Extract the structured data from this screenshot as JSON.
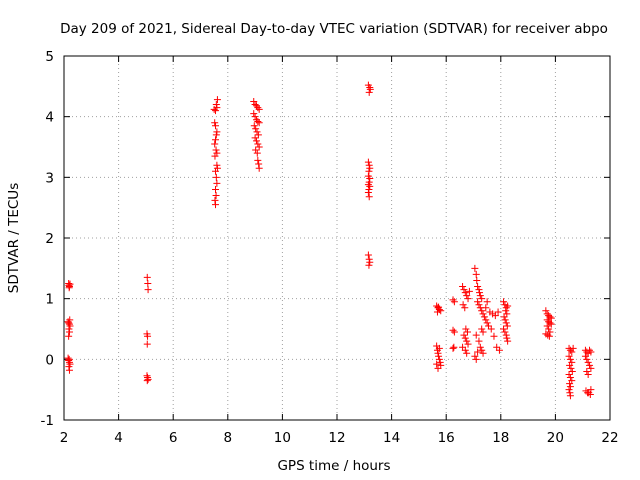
{
  "chart_data": {
    "type": "scatter",
    "title": "Day 209 of 2021, Sidereal Day-to-day VTEC variation (SDTVAR) for receiver abpo",
    "xlabel": "GPS time / hours",
    "ylabel": "SDTVAR / TECUs",
    "xlim": [
      2,
      22
    ],
    "ylim": [
      -1,
      5
    ],
    "xticks": [
      "2",
      "4",
      "6",
      "8",
      "10",
      "12",
      "14",
      "16",
      "18",
      "20",
      "22"
    ],
    "yticks": [
      "-1",
      "0",
      "1",
      "2",
      "3",
      "4",
      "5"
    ],
    "xtick_values": [
      2,
      4,
      6,
      8,
      10,
      12,
      14,
      16,
      18,
      20,
      22
    ],
    "ytick_values": [
      -1,
      0,
      1,
      2,
      3,
      4,
      5
    ],
    "grid": true,
    "marker": "+",
    "color": "#ff0000",
    "series": [
      {
        "name": "SDTVAR",
        "points": [
          [
            2.17,
            1.25
          ],
          [
            2.18,
            1.22
          ],
          [
            2.2,
            1.2
          ],
          [
            2.22,
            1.24
          ],
          [
            2.19,
            1.18
          ],
          [
            2.15,
            0.62
          ],
          [
            2.17,
            0.6
          ],
          [
            2.2,
            0.58
          ],
          [
            2.22,
            0.55
          ],
          [
            2.18,
            0.5
          ],
          [
            2.2,
            0.45
          ],
          [
            2.17,
            0.38
          ],
          [
            2.21,
            0.65
          ],
          [
            2.15,
            0.02
          ],
          [
            2.17,
            -0.02
          ],
          [
            2.2,
            -0.05
          ],
          [
            2.22,
            -0.08
          ],
          [
            2.18,
            -0.12
          ],
          [
            2.2,
            -0.18
          ],
          [
            2.19,
            0.0
          ],
          [
            5.05,
            1.35
          ],
          [
            5.07,
            1.25
          ],
          [
            5.08,
            1.15
          ],
          [
            5.04,
            0.42
          ],
          [
            5.06,
            0.38
          ],
          [
            5.05,
            0.25
          ],
          [
            5.04,
            -0.27
          ],
          [
            5.06,
            -0.3
          ],
          [
            5.08,
            -0.33
          ],
          [
            5.05,
            -0.35
          ],
          [
            7.5,
            4.12
          ],
          [
            7.55,
            4.1
          ],
          [
            7.6,
            4.15
          ],
          [
            7.62,
            4.28
          ],
          [
            7.58,
            4.2
          ],
          [
            7.52,
            3.9
          ],
          [
            7.55,
            3.85
          ],
          [
            7.6,
            3.75
          ],
          [
            7.58,
            3.7
          ],
          [
            7.55,
            3.62
          ],
          [
            7.52,
            3.55
          ],
          [
            7.57,
            3.45
          ],
          [
            7.6,
            3.4
          ],
          [
            7.53,
            3.35
          ],
          [
            7.6,
            3.2
          ],
          [
            7.62,
            3.15
          ],
          [
            7.55,
            3.1
          ],
          [
            7.58,
            3.0
          ],
          [
            7.6,
            2.9
          ],
          [
            7.55,
            2.8
          ],
          [
            7.57,
            2.7
          ],
          [
            7.53,
            2.62
          ],
          [
            7.55,
            2.55
          ],
          [
            8.95,
            4.25
          ],
          [
            9.0,
            4.2
          ],
          [
            9.05,
            4.18
          ],
          [
            9.1,
            4.15
          ],
          [
            9.15,
            4.12
          ],
          [
            8.95,
            4.05
          ],
          [
            9.0,
            4.0
          ],
          [
            9.05,
            3.95
          ],
          [
            9.1,
            3.92
          ],
          [
            9.15,
            3.9
          ],
          [
            8.97,
            3.85
          ],
          [
            9.02,
            3.8
          ],
          [
            9.07,
            3.75
          ],
          [
            9.12,
            3.7
          ],
          [
            9.0,
            3.65
          ],
          [
            9.05,
            3.6
          ],
          [
            9.1,
            3.55
          ],
          [
            9.15,
            3.5
          ],
          [
            9.02,
            3.45
          ],
          [
            9.08,
            3.4
          ],
          [
            9.1,
            3.28
          ],
          [
            9.13,
            3.22
          ],
          [
            9.15,
            3.15
          ],
          [
            13.15,
            4.52
          ],
          [
            13.2,
            4.48
          ],
          [
            13.22,
            4.45
          ],
          [
            13.18,
            4.4
          ],
          [
            13.15,
            3.25
          ],
          [
            13.18,
            3.2
          ],
          [
            13.2,
            3.15
          ],
          [
            13.17,
            3.1
          ],
          [
            13.15,
            3.02
          ],
          [
            13.2,
            2.98
          ],
          [
            13.18,
            2.92
          ],
          [
            13.15,
            2.88
          ],
          [
            13.2,
            2.85
          ],
          [
            13.17,
            2.8
          ],
          [
            13.15,
            2.75
          ],
          [
            13.18,
            2.68
          ],
          [
            13.15,
            1.72
          ],
          [
            13.18,
            1.65
          ],
          [
            13.2,
            1.6
          ],
          [
            13.17,
            1.55
          ],
          [
            15.65,
            0.88
          ],
          [
            15.7,
            0.85
          ],
          [
            15.75,
            0.82
          ],
          [
            15.8,
            0.8
          ],
          [
            15.68,
            0.78
          ],
          [
            15.72,
            0.86
          ],
          [
            15.65,
            0.22
          ],
          [
            15.68,
            0.15
          ],
          [
            15.7,
            0.1
          ],
          [
            15.72,
            0.05
          ],
          [
            15.75,
            0.0
          ],
          [
            15.78,
            -0.05
          ],
          [
            15.8,
            -0.1
          ],
          [
            15.7,
            -0.15
          ],
          [
            15.65,
            -0.08
          ],
          [
            15.75,
            0.18
          ],
          [
            16.25,
            0.98
          ],
          [
            16.3,
            0.95
          ],
          [
            16.25,
            0.48
          ],
          [
            16.3,
            0.45
          ],
          [
            16.28,
            0.2
          ],
          [
            16.25,
            0.18
          ],
          [
            16.6,
            1.2
          ],
          [
            16.65,
            1.15
          ],
          [
            16.7,
            1.1
          ],
          [
            16.75,
            1.05
          ],
          [
            16.8,
            1.0
          ],
          [
            16.85,
            1.12
          ],
          [
            16.62,
            0.9
          ],
          [
            16.68,
            0.85
          ],
          [
            16.72,
            0.5
          ],
          [
            16.78,
            0.45
          ],
          [
            16.65,
            0.4
          ],
          [
            16.7,
            0.35
          ],
          [
            16.75,
            0.3
          ],
          [
            16.8,
            0.25
          ],
          [
            16.6,
            0.2
          ],
          [
            16.7,
            0.15
          ],
          [
            16.75,
            0.1
          ],
          [
            17.05,
            1.5
          ],
          [
            17.1,
            1.4
          ],
          [
            17.12,
            1.3
          ],
          [
            17.15,
            1.2
          ],
          [
            17.2,
            1.15
          ],
          [
            17.22,
            1.1
          ],
          [
            17.25,
            1.05
          ],
          [
            17.3,
            1.0
          ],
          [
            17.15,
            0.95
          ],
          [
            17.2,
            0.9
          ],
          [
            17.25,
            0.85
          ],
          [
            17.3,
            0.8
          ],
          [
            17.35,
            0.75
          ],
          [
            17.4,
            0.7
          ],
          [
            17.45,
            0.65
          ],
          [
            17.5,
            0.6
          ],
          [
            17.55,
            0.55
          ],
          [
            17.3,
            0.5
          ],
          [
            17.35,
            0.45
          ],
          [
            17.1,
            0.4
          ],
          [
            17.2,
            0.3
          ],
          [
            17.25,
            0.2
          ],
          [
            17.3,
            0.15
          ],
          [
            17.35,
            0.1
          ],
          [
            17.05,
            0.05
          ],
          [
            17.1,
            0.0
          ],
          [
            17.15,
            0.12
          ],
          [
            17.5,
            0.95
          ],
          [
            17.45,
            0.85
          ],
          [
            17.6,
            0.78
          ],
          [
            17.7,
            0.75
          ],
          [
            17.8,
            0.72
          ],
          [
            17.9,
            0.78
          ],
          [
            17.65,
            0.5
          ],
          [
            17.75,
            0.38
          ],
          [
            17.85,
            0.2
          ],
          [
            17.95,
            0.15
          ],
          [
            18.1,
            0.95
          ],
          [
            18.15,
            0.9
          ],
          [
            18.2,
            0.85
          ],
          [
            18.25,
            0.88
          ],
          [
            18.18,
            0.8
          ],
          [
            18.22,
            0.75
          ],
          [
            18.12,
            0.7
          ],
          [
            18.16,
            0.65
          ],
          [
            18.2,
            0.6
          ],
          [
            18.24,
            0.55
          ],
          [
            18.1,
            0.5
          ],
          [
            18.15,
            0.45
          ],
          [
            18.2,
            0.4
          ],
          [
            18.22,
            0.35
          ],
          [
            18.25,
            0.3
          ],
          [
            19.65,
            0.8
          ],
          [
            19.7,
            0.75
          ],
          [
            19.75,
            0.72
          ],
          [
            19.8,
            0.7
          ],
          [
            19.85,
            0.68
          ],
          [
            19.7,
            0.65
          ],
          [
            19.75,
            0.62
          ],
          [
            19.8,
            0.6
          ],
          [
            19.85,
            0.58
          ],
          [
            19.7,
            0.55
          ],
          [
            19.75,
            0.5
          ],
          [
            19.8,
            0.45
          ],
          [
            19.65,
            0.42
          ],
          [
            19.72,
            0.4
          ],
          [
            19.78,
            0.38
          ],
          [
            20.5,
            0.18
          ],
          [
            20.55,
            0.15
          ],
          [
            20.6,
            0.12
          ],
          [
            20.65,
            0.18
          ],
          [
            20.5,
            0.05
          ],
          [
            20.55,
            0.0
          ],
          [
            20.6,
            -0.05
          ],
          [
            20.52,
            -0.1
          ],
          [
            20.57,
            -0.15
          ],
          [
            20.62,
            -0.2
          ],
          [
            20.5,
            -0.25
          ],
          [
            20.55,
            -0.3
          ],
          [
            20.6,
            -0.35
          ],
          [
            20.52,
            -0.4
          ],
          [
            20.55,
            -0.45
          ],
          [
            20.5,
            -0.5
          ],
          [
            20.53,
            -0.55
          ],
          [
            20.55,
            -0.6
          ],
          [
            21.1,
            0.15
          ],
          [
            21.15,
            0.12
          ],
          [
            21.2,
            0.1
          ],
          [
            21.25,
            0.15
          ],
          [
            21.3,
            0.12
          ],
          [
            21.1,
            0.05
          ],
          [
            21.15,
            0.0
          ],
          [
            21.2,
            -0.05
          ],
          [
            21.25,
            -0.1
          ],
          [
            21.3,
            -0.15
          ],
          [
            21.15,
            -0.2
          ],
          [
            21.2,
            -0.25
          ],
          [
            21.12,
            -0.52
          ],
          [
            21.18,
            -0.55
          ],
          [
            21.22,
            -0.55
          ],
          [
            21.28,
            -0.58
          ],
          [
            21.3,
            -0.5
          ]
        ]
      }
    ]
  }
}
